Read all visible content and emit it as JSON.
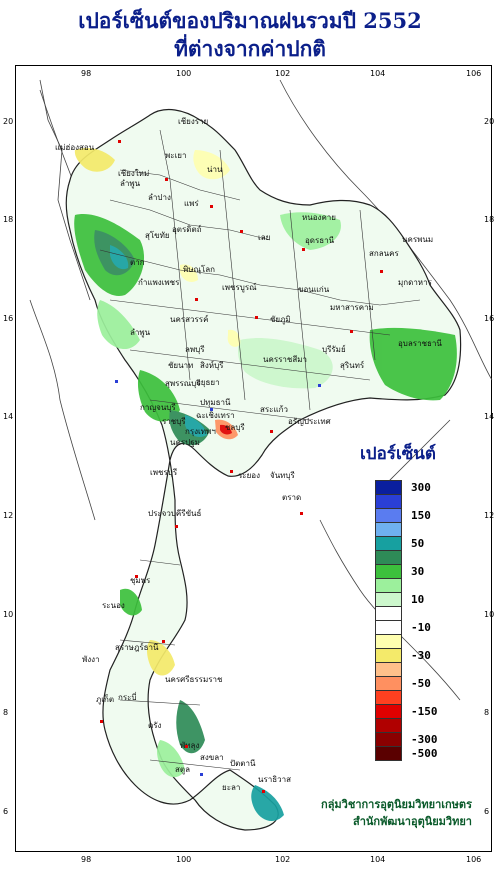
{
  "title": {
    "line1": "เปอร์เซ็นต์ของปริมาณฝนรวมปี 2552",
    "line2": "ที่ต่างจากค่าปกติ"
  },
  "axes": {
    "x_ticks": [
      "98",
      "100",
      "102",
      "104",
      "106"
    ],
    "y_ticks": [
      "20",
      "18",
      "16",
      "14",
      "12",
      "10",
      "8",
      "6"
    ]
  },
  "legend": {
    "title": "เปอร์เซ็นต์",
    "classes": [
      {
        "color": "#0a1f9e",
        "label": "300"
      },
      {
        "color": "#2a3fd6",
        "label": ""
      },
      {
        "color": "#5a7cf0",
        "label": "150"
      },
      {
        "color": "#6fb0f0",
        "label": ""
      },
      {
        "color": "#17a0a0",
        "label": "50"
      },
      {
        "color": "#2e8b57",
        "label": ""
      },
      {
        "color": "#3cc03c",
        "label": "30"
      },
      {
        "color": "#9cf09c",
        "label": ""
      },
      {
        "color": "#ccf7cc",
        "label": "10"
      },
      {
        "color": "#ffffff",
        "label": ""
      },
      {
        "color": "#ffffff",
        "label": "-10"
      },
      {
        "color": "#ffffb0",
        "label": ""
      },
      {
        "color": "#f4ea6a",
        "label": "-30"
      },
      {
        "color": "#ffc08a",
        "label": ""
      },
      {
        "color": "#ff9060",
        "label": "-50"
      },
      {
        "color": "#ff4020",
        "label": ""
      },
      {
        "color": "#e00000",
        "label": "-150"
      },
      {
        "color": "#b00000",
        "label": ""
      },
      {
        "color": "#8a0000",
        "label": "-300"
      },
      {
        "color": "#5a0000",
        "label": "-500"
      }
    ]
  },
  "places": [
    "เชียงราย",
    "แม่ฮ่องสอน",
    "พะเยา",
    "เชียงใหม่",
    "ลำพูน",
    "ลำปาง",
    "น่าน",
    "แพร่",
    "อุตรดิตถ์",
    "ตาก",
    "สุโขทัย",
    "พิษณุโลก",
    "เลย",
    "หนองคาย",
    "อุดรธานี",
    "สกลนคร",
    "นครพนม",
    "มุกดาหาร",
    "กำแพงเพชร",
    "เพชรบูรณ์",
    "ขอนแก่น",
    "นครสวรรค์",
    "ชัยภูมิ",
    "มหาสารคาม",
    "ลพบุรี",
    "ชัยนาท",
    "สุพรรณบุรี",
    "อุบลราชธานี",
    "นครราชสีมา",
    "บุรีรัมย์",
    "สุรินทร์",
    "กาญจนบุรี",
    "ปทุมธานี",
    "ราชบุรี",
    "ชลบุรี",
    "ฉะเชิงเทรา",
    "สระแก้ว",
    "ระยอง",
    "จันทบุรี",
    "ประจวบคีรีขันธ์",
    "ชุมพร",
    "ระนอง",
    "สุราษฎร์ธานี",
    "พังงา",
    "ภูเก็ต",
    "กระบี่",
    "นครศรีธรรมราช",
    "ตรัง",
    "สตูล",
    "สงขลา",
    "ปัตตานี",
    "นราธิวาส",
    "ยะลา",
    "พัทลุง",
    "เพชรบุรี",
    "กรุงเทพฯ",
    "อยุธยา",
    "สิงห์บุรี",
    "ลำพูน",
    "นครปฐม",
    "อรัญประเทศ",
    "ตราด"
  ],
  "credits": {
    "line1": "กลุ่มวิชาการอุตุนิยมวิทยาเกษตร",
    "line2": "สำนักพัฒนาอุตุนิยมวิทยา"
  }
}
